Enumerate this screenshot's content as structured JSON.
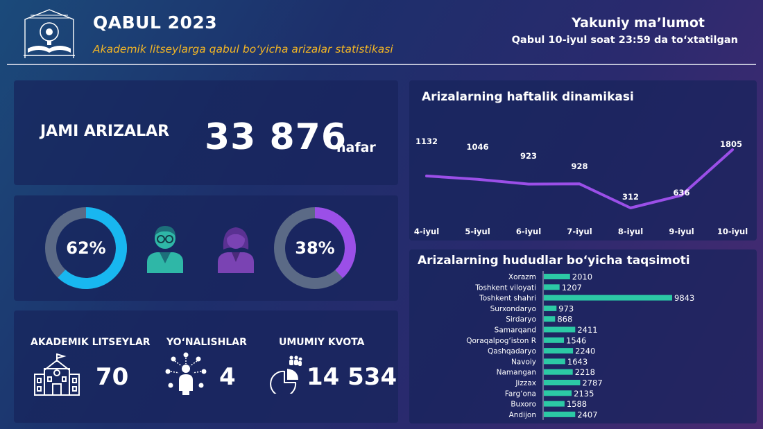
{
  "header": {
    "title": "QABUL 2023",
    "subtitle": "Akademik litseylarga qabul bo‘yicha arizalar statistikasi",
    "final_title": "Yakuniy ma’lumot",
    "final_sub": "Qabul 10-iyul soat 23:59 da to‘xtatilgan"
  },
  "total": {
    "label": "JAMI ARIZALAR",
    "value": "33 876",
    "unit": "nafar"
  },
  "gender": {
    "male_percent_label": "62%",
    "male_fraction": 0.62,
    "female_percent_label": "38%",
    "female_fraction": 0.38
  },
  "stats": {
    "lyceums_label": "AKADEMIK LITSEYLAR",
    "lyceums_value": "70",
    "directions_label": "YO‘NALISHLAR",
    "directions_value": "4",
    "quota_label": "UMUMIY KVOTA",
    "quota_value": "14 534"
  },
  "colors": {
    "accent_cyan": "#18b7f0",
    "accent_purple": "#9b4fe8",
    "teal_bar": "#2cc9a5",
    "subtitle_gold": "#f3b625"
  },
  "chart_data": [
    {
      "type": "line",
      "title": "Arizalarning haftalik dinamikasi",
      "categories": [
        "4-iyul",
        "5-iyul",
        "6-iyul",
        "7-iyul",
        "8-iyul",
        "9-iyul",
        "10-iyul"
      ],
      "values": [
        1132,
        1046,
        923,
        928,
        312,
        636,
        1805
      ],
      "ylim": [
        0,
        2000
      ],
      "grid": false,
      "color": "#9b4fe8"
    },
    {
      "type": "bar",
      "orientation": "horizontal",
      "title": "Arizalarning hududlar bo‘yicha taqsimoti",
      "categories": [
        "Xorazm",
        "Toshkent viloyati",
        "Toshkent shahri",
        "Surxondaryo",
        "Sirdaryo",
        "Samarqand",
        "Qoraqalpog‘iston R",
        "Qashqadaryo",
        "Navoiy",
        "Namangan",
        "Jizzax",
        "Farg‘ona",
        "Buxoro",
        "Andijon"
      ],
      "values": [
        2010,
        1207,
        9843,
        973,
        868,
        2411,
        1546,
        2240,
        1643,
        2218,
        2787,
        2135,
        1588,
        2407
      ],
      "xlim": [
        0,
        10000
      ],
      "grid": false,
      "color": "#2cc9a5"
    }
  ]
}
